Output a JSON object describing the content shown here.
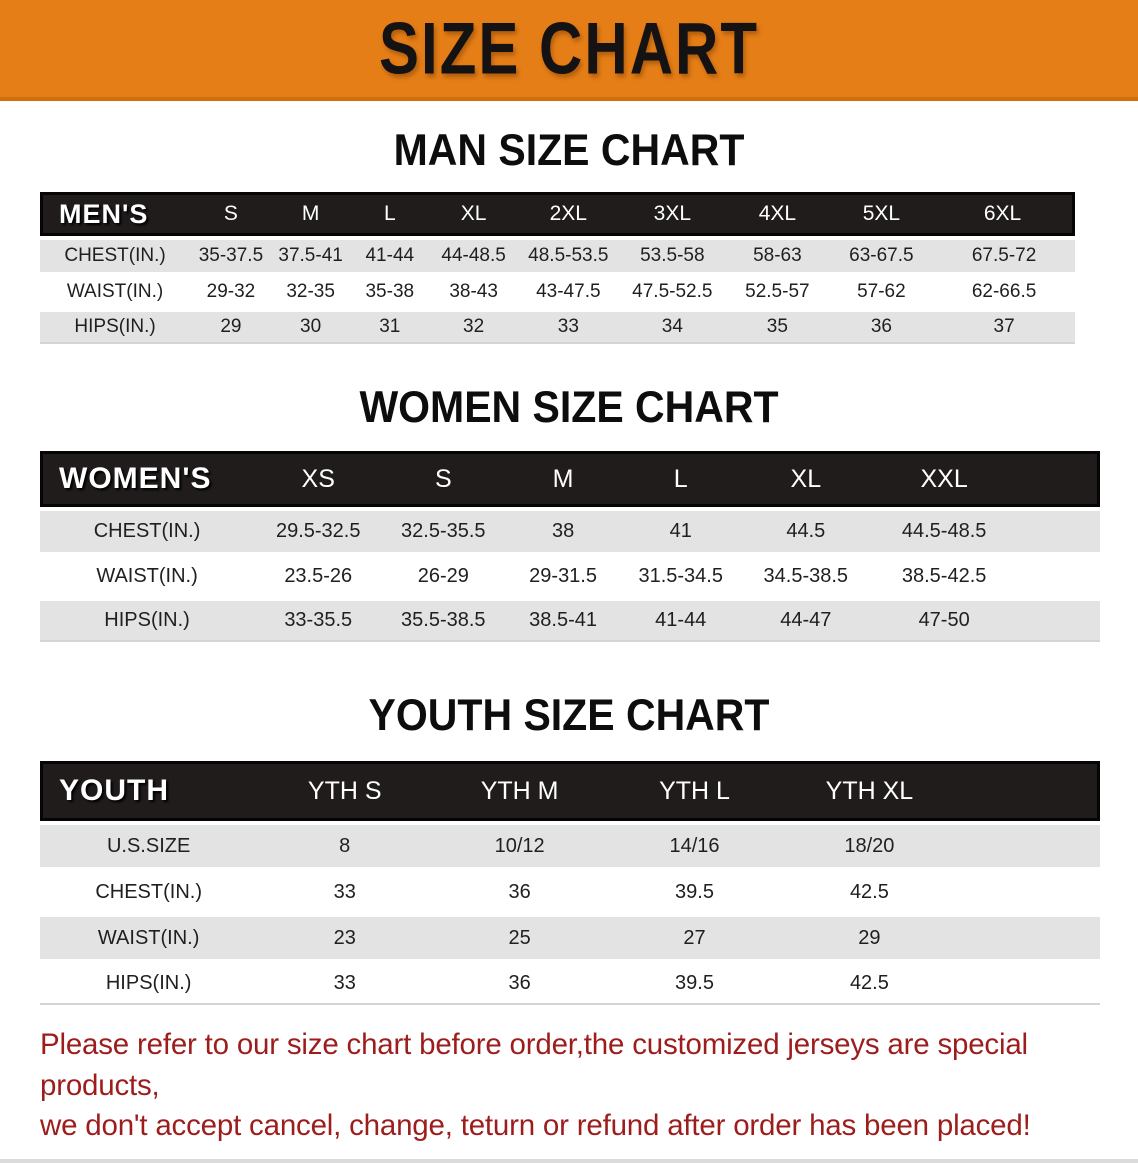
{
  "banner": {
    "title": "SIZE CHART",
    "bg_color": "#e67e17"
  },
  "sections": [
    {
      "key": "mens",
      "heading": "MAN SIZE CHART",
      "header_label": "MEN'S",
      "sizes": [
        "S",
        "M",
        "L",
        "XL",
        "2XL",
        "3XL",
        "4XL",
        "5XL",
        "6XL"
      ],
      "rows": [
        {
          "label": "CHEST(IN.)",
          "values": [
            "35-37.5",
            "37.5-41",
            "41-44",
            "44-48.5",
            "48.5-53.5",
            "53.5-58",
            "58-63",
            "63-67.5",
            "67.5-72"
          ]
        },
        {
          "label": "WAIST(IN.)",
          "values": [
            "29-32",
            "32-35",
            "35-38",
            "38-43",
            "43-47.5",
            "47.5-52.5",
            "52.5-57",
            "57-62",
            "62-66.5"
          ]
        },
        {
          "label": "HIPS(IN.)",
          "values": [
            "29",
            "30",
            "31",
            "32",
            "33",
            "34",
            "35",
            "36",
            "37"
          ]
        }
      ]
    },
    {
      "key": "womens",
      "heading": "WOMEN SIZE CHART",
      "header_label": "WOMEN'S",
      "sizes": [
        "XS",
        "S",
        "M",
        "L",
        "XL",
        "XXL"
      ],
      "rows": [
        {
          "label": "CHEST(IN.)",
          "values": [
            "29.5-32.5",
            "32.5-35.5",
            "38",
            "41",
            "44.5",
            "44.5-48.5"
          ]
        },
        {
          "label": "WAIST(IN.)",
          "values": [
            "23.5-26",
            "26-29",
            "29-31.5",
            "31.5-34.5",
            "34.5-38.5",
            "38.5-42.5"
          ]
        },
        {
          "label": "HIPS(IN.)",
          "values": [
            "33-35.5",
            "35.5-38.5",
            "38.5-41",
            "41-44",
            "44-47",
            "47-50"
          ]
        }
      ]
    },
    {
      "key": "youth",
      "heading": "YOUTH SIZE CHART",
      "header_label": "YOUTH",
      "sizes": [
        "YTH S",
        "YTH M",
        "YTH L",
        "YTH XL"
      ],
      "rows": [
        {
          "label": "U.S.SIZE",
          "values": [
            "8",
            "10/12",
            "14/16",
            "18/20"
          ]
        },
        {
          "label": "CHEST(IN.)",
          "values": [
            "33",
            "36",
            "39.5",
            "42.5"
          ]
        },
        {
          "label": "WAIST(IN.)",
          "values": [
            "23",
            "25",
            "27",
            "29"
          ]
        },
        {
          "label": "HIPS(IN.)",
          "values": [
            "33",
            "36",
            "39.5",
            "42.5"
          ]
        }
      ]
    }
  ],
  "footer": {
    "lines": [
      "Please refer to our size chart before order,the customized jerseys are special products,",
      "we don't accept cancel, change, teturn or refund after order has been placed!"
    ],
    "color": "#9d1d1d"
  }
}
